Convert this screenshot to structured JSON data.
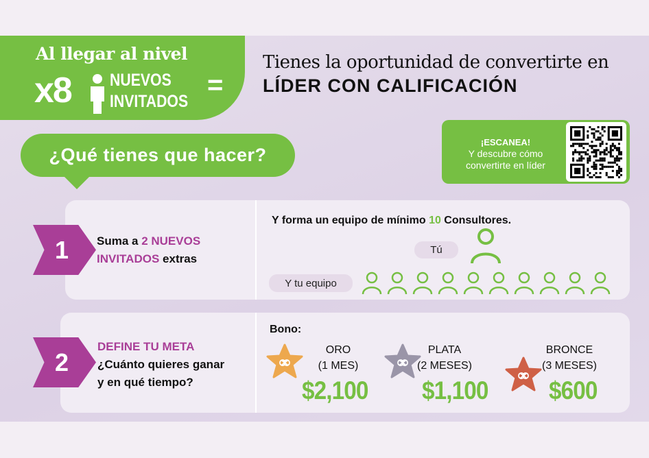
{
  "hero": {
    "line1": "Al llegar al nivel",
    "multiplier": "x8",
    "line2a": "NUEVOS",
    "line2b": "INVITADOS",
    "equals": "="
  },
  "headline": {
    "line1": "Tienes la oportunidad de convertirte en",
    "line2": "LÍDER CON CALIFICACIÓN"
  },
  "question": "¿Qué tienes que hacer?",
  "qr_card": {
    "title": "¡ESCANEA!",
    "line1": "Y descubre cómo",
    "line2": "convertirte en líder"
  },
  "step1": {
    "number": "1",
    "text_a": "Suma a ",
    "text_highlight": "2 NUEVOS INVITADOS",
    "text_b": " extras",
    "team_text_a": "Y forma un equipo de mínimo ",
    "team_count": "10",
    "team_text_b": " Consultores.",
    "you_label": "Tú",
    "team_label": "Y tu equipo",
    "team_icons": 10
  },
  "step2": {
    "number": "2",
    "title": "DEFINE TU META",
    "line1": "¿Cuánto quieres ganar",
    "line2": "y en qué tiempo?",
    "bonus_label": "Bono:",
    "tiers": [
      {
        "name": "ORO",
        "period": "(1 MES)",
        "amount": "$2,100",
        "color": "#eda84e"
      },
      {
        "name": "PLATA",
        "period": "(2 MESES)",
        "amount": "$1,100",
        "color": "#9a95a8"
      },
      {
        "name": "BRONCE",
        "period": "(3 MESES)",
        "amount": "$600",
        "color": "#cf6046"
      }
    ]
  },
  "colors": {
    "green": "#76bf43",
    "purple": "#a93e97"
  }
}
